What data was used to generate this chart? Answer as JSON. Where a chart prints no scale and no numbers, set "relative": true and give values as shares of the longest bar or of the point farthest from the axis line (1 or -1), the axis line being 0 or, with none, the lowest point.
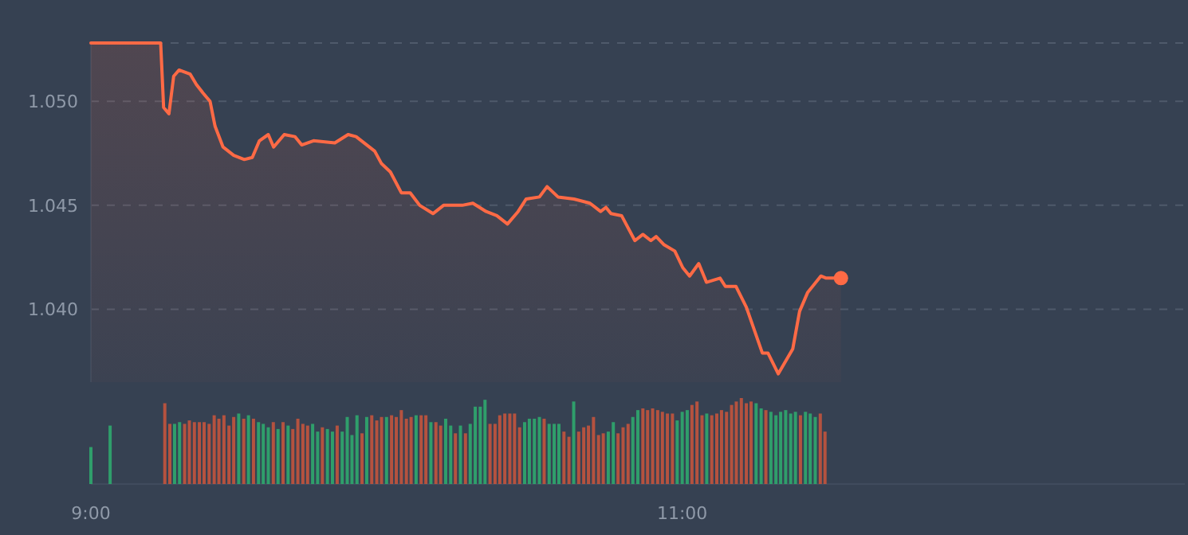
{
  "chart_data": [
    {
      "type": "area",
      "xlim": [
        9,
        12.7
      ],
      "ylim": [
        1.0365,
        1.0528
      ],
      "yticks": [
        {
          "value": 1.04,
          "label": "1.040"
        },
        {
          "value": 1.045,
          "label": "1.045"
        },
        {
          "value": 1.05,
          "label": "1.050"
        },
        {
          "value": 1.0528,
          "label": null
        }
      ],
      "grid": "y",
      "tick_labels": "y",
      "line_style": "solid",
      "series": [
        {
          "color": "#ff6a45",
          "x": [
            9,
            9.236,
            9.246,
            9.264,
            9.28,
            9.298,
            9.336,
            9.357,
            9.379,
            9.403,
            9.42,
            9.447,
            9.483,
            9.519,
            9.546,
            9.57,
            9.6,
            9.618,
            9.654,
            9.69,
            9.713,
            9.753,
            9.825,
            9.87,
            9.897,
            9.96,
            9.983,
            10.013,
            10.05,
            10.08,
            10.112,
            10.157,
            10.193,
            10.256,
            10.292,
            10.337,
            10.373,
            10.409,
            10.445,
            10.472,
            10.517,
            10.543,
            10.58,
            10.634,
            10.688,
            10.724,
            10.742,
            10.759,
            10.795,
            10.84,
            10.867,
            10.894,
            10.912,
            10.939,
            10.975,
            11.002,
            11.025,
            11.056,
            11.082,
            11.128,
            11.146,
            11.182,
            11.217,
            11.271,
            11.29,
            11.325,
            11.374,
            11.397,
            11.424,
            11.469,
            11.487,
            11.537
          ],
          "values": [
            1.0528,
            1.0528,
            1.0497,
            1.0494,
            1.0512,
            1.0515,
            1.0513,
            1.0508,
            1.0504,
            1.05,
            1.0488,
            1.0478,
            1.0474,
            1.0472,
            1.0473,
            1.0481,
            1.0484,
            1.0478,
            1.0484,
            1.0483,
            1.0479,
            1.0481,
            1.048,
            1.0484,
            1.0483,
            1.0476,
            1.047,
            1.0466,
            1.0456,
            1.0456,
            1.045,
            1.0446,
            1.045,
            1.045,
            1.0451,
            1.0447,
            1.0445,
            1.0441,
            1.0447,
            1.0453,
            1.0454,
            1.0459,
            1.0454,
            1.0453,
            1.0451,
            1.0447,
            1.0449,
            1.0446,
            1.0445,
            1.0433,
            1.0436,
            1.0433,
            1.0435,
            1.0431,
            1.0428,
            1.042,
            1.0416,
            1.0422,
            1.0413,
            1.0415,
            1.0411,
            1.0411,
            1.0401,
            1.0379,
            1.0379,
            1.0369,
            1.0381,
            1.0399,
            1.0408,
            1.0416,
            1.0415,
            1.0415
          ]
        },
        {
          "type": "scatter",
          "color": "#ff6a45",
          "marker": "circle",
          "x": [
            11.537
          ],
          "values": [
            1.0415
          ]
        }
      ]
    },
    {
      "type": "bar",
      "relative": true,
      "xlim": [
        9,
        12.7
      ],
      "xticks": [
        {
          "value": 9,
          "label": "9:00"
        },
        {
          "value": 11,
          "label": "11:00"
        }
      ],
      "tick_labels": "x",
      "x": [
        9,
        9.065,
        9.25,
        9.267,
        9.283,
        9.3,
        9.317,
        9.333,
        9.35,
        9.367,
        9.383,
        9.4,
        9.417,
        9.433,
        9.45,
        9.467,
        9.483,
        9.5,
        9.517,
        9.533,
        9.55,
        9.567,
        9.583,
        9.6,
        9.617,
        9.633,
        9.65,
        9.667,
        9.683,
        9.7,
        9.717,
        9.733,
        9.75,
        9.767,
        9.783,
        9.8,
        9.817,
        9.833,
        9.85,
        9.867,
        9.883,
        9.9,
        9.917,
        9.933,
        9.95,
        9.967,
        9.983,
        10,
        10.017,
        10.033,
        10.05,
        10.067,
        10.083,
        10.1,
        10.117,
        10.133,
        10.15,
        10.167,
        10.183,
        10.2,
        10.217,
        10.233,
        10.25,
        10.267,
        10.283,
        10.3,
        10.317,
        10.333,
        10.35,
        10.367,
        10.383,
        10.4,
        10.417,
        10.433,
        10.45,
        10.467,
        10.483,
        10.5,
        10.517,
        10.533,
        10.55,
        10.567,
        10.583,
        10.6,
        10.617,
        10.633,
        10.65,
        10.667,
        10.683,
        10.7,
        10.717,
        10.733,
        10.75,
        10.767,
        10.783,
        10.8,
        10.817,
        10.833,
        10.85,
        10.867,
        10.883,
        10.9,
        10.917,
        10.933,
        10.95,
        10.967,
        10.983,
        11,
        11.017,
        11.033,
        11.05,
        11.067,
        11.083,
        11.1,
        11.117,
        11.133,
        11.15,
        11.167,
        11.183,
        11.2,
        11.217,
        11.233,
        11.25,
        11.267,
        11.283,
        11.3,
        11.317,
        11.333,
        11.35,
        11.367,
        11.383,
        11.4,
        11.417,
        11.433,
        11.45,
        11.467,
        11.483
      ],
      "values": [
        0.43,
        0.68,
        0.94,
        0.7,
        0.7,
        0.72,
        0.7,
        0.74,
        0.72,
        0.72,
        0.72,
        0.7,
        0.8,
        0.76,
        0.8,
        0.68,
        0.78,
        0.82,
        0.76,
        0.8,
        0.76,
        0.72,
        0.7,
        0.66,
        0.72,
        0.64,
        0.72,
        0.68,
        0.64,
        0.76,
        0.7,
        0.68,
        0.7,
        0.61,
        0.66,
        0.64,
        0.61,
        0.68,
        0.61,
        0.78,
        0.57,
        0.8,
        0.59,
        0.78,
        0.8,
        0.74,
        0.78,
        0.78,
        0.8,
        0.78,
        0.86,
        0.76,
        0.78,
        0.8,
        0.8,
        0.8,
        0.72,
        0.72,
        0.68,
        0.76,
        0.68,
        0.59,
        0.68,
        0.59,
        0.7,
        0.9,
        0.9,
        0.98,
        0.7,
        0.7,
        0.8,
        0.82,
        0.82,
        0.82,
        0.66,
        0.72,
        0.76,
        0.76,
        0.78,
        0.76,
        0.7,
        0.7,
        0.7,
        0.61,
        0.55,
        0.96,
        0.61,
        0.66,
        0.68,
        0.78,
        0.57,
        0.59,
        0.61,
        0.72,
        0.59,
        0.66,
        0.7,
        0.78,
        0.86,
        0.88,
        0.86,
        0.88,
        0.86,
        0.84,
        0.82,
        0.82,
        0.74,
        0.84,
        0.86,
        0.92,
        0.96,
        0.8,
        0.82,
        0.8,
        0.82,
        0.86,
        0.84,
        0.92,
        0.96,
        1.0,
        0.94,
        0.96,
        0.94,
        0.88,
        0.86,
        0.84,
        0.8,
        0.84,
        0.86,
        0.82,
        0.84,
        0.8,
        0.84,
        0.82,
        0.78,
        0.82,
        0.61
      ],
      "colors": [
        "#2f9e6b",
        "#2f9e6b",
        "#b5523f",
        "#b5523f",
        "#2f9e6b",
        "#2f9e6b",
        "#b5523f",
        "#b5523f",
        "#b5523f",
        "#b5523f",
        "#b5523f",
        "#b5523f",
        "#b5523f",
        "#b5523f",
        "#b5523f",
        "#b5523f",
        "#b5523f",
        "#2f9e6b",
        "#b5523f",
        "#2f9e6b",
        "#b5523f",
        "#2f9e6b",
        "#2f9e6b",
        "#2f9e6b",
        "#b5523f",
        "#2f9e6b",
        "#b5523f",
        "#2f9e6b",
        "#b5523f",
        "#b5523f",
        "#b5523f",
        "#b5523f",
        "#2f9e6b",
        "#2f9e6b",
        "#b5523f",
        "#2f9e6b",
        "#2f9e6b",
        "#b5523f",
        "#2f9e6b",
        "#2f9e6b",
        "#2f9e6b",
        "#2f9e6b",
        "#b5523f",
        "#2f9e6b",
        "#b5523f",
        "#b5523f",
        "#b5523f",
        "#2f9e6b",
        "#b5523f",
        "#b5523f",
        "#b5523f",
        "#b5523f",
        "#b5523f",
        "#2f9e6b",
        "#b5523f",
        "#b5523f",
        "#2f9e6b",
        "#b5523f",
        "#b5523f",
        "#2f9e6b",
        "#2f9e6b",
        "#b5523f",
        "#2f9e6b",
        "#b5523f",
        "#2f9e6b",
        "#2f9e6b",
        "#2f9e6b",
        "#2f9e6b",
        "#b5523f",
        "#b5523f",
        "#b5523f",
        "#b5523f",
        "#b5523f",
        "#b5523f",
        "#b5523f",
        "#2f9e6b",
        "#2f9e6b",
        "#2f9e6b",
        "#2f9e6b",
        "#b5523f",
        "#2f9e6b",
        "#2f9e6b",
        "#2f9e6b",
        "#b5523f",
        "#b5523f",
        "#2f9e6b",
        "#b5523f",
        "#b5523f",
        "#b5523f",
        "#b5523f",
        "#b5523f",
        "#b5523f",
        "#2f9e6b",
        "#2f9e6b",
        "#b5523f",
        "#b5523f",
        "#b5523f",
        "#2f9e6b",
        "#2f9e6b",
        "#b5523f",
        "#b5523f",
        "#b5523f",
        "#b5523f",
        "#b5523f",
        "#b5523f",
        "#b5523f",
        "#2f9e6b",
        "#2f9e6b",
        "#2f9e6b",
        "#b5523f",
        "#b5523f",
        "#b5523f",
        "#2f9e6b",
        "#b5523f",
        "#b5523f",
        "#b5523f",
        "#b5523f",
        "#b5523f",
        "#b5523f",
        "#b5523f",
        "#b5523f",
        "#b5523f",
        "#2f9e6b",
        "#2f9e6b",
        "#b5523f",
        "#2f9e6b",
        "#2f9e6b",
        "#2f9e6b",
        "#2f9e6b",
        "#2f9e6b",
        "#2f9e6b",
        "#b5523f",
        "#2f9e6b",
        "#2f9e6b",
        "#2f9e6b",
        "#b5523f",
        "#b5523f"
      ]
    }
  ]
}
